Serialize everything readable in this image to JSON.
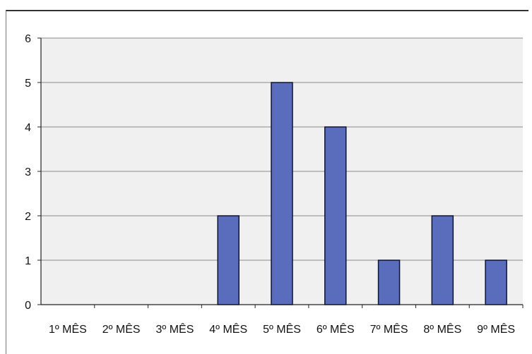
{
  "chart_data": {
    "type": "bar",
    "title": "",
    "xlabel": "",
    "ylabel": "",
    "categories": [
      "1º MÊS",
      "2º MÊS",
      "3º MÊS",
      "4º MÊS",
      "5º MÊS",
      "6º MÊS",
      "7º MÊS",
      "8º MÊS",
      "9º MÊS"
    ],
    "values": [
      0,
      0,
      0,
      2,
      5,
      4,
      1,
      2,
      1
    ],
    "ylim": [
      0,
      6
    ],
    "yticks": [
      "0",
      "1",
      "2",
      "3",
      "4",
      "5",
      "6"
    ],
    "grid": true,
    "legend": "none",
    "colors": {
      "bar_fill": "#5a6dbd",
      "bar_stroke": "#0d1433",
      "plot_background": "#f0f0f0",
      "gridline": "#8a8a8a",
      "axis": "#222222"
    }
  }
}
